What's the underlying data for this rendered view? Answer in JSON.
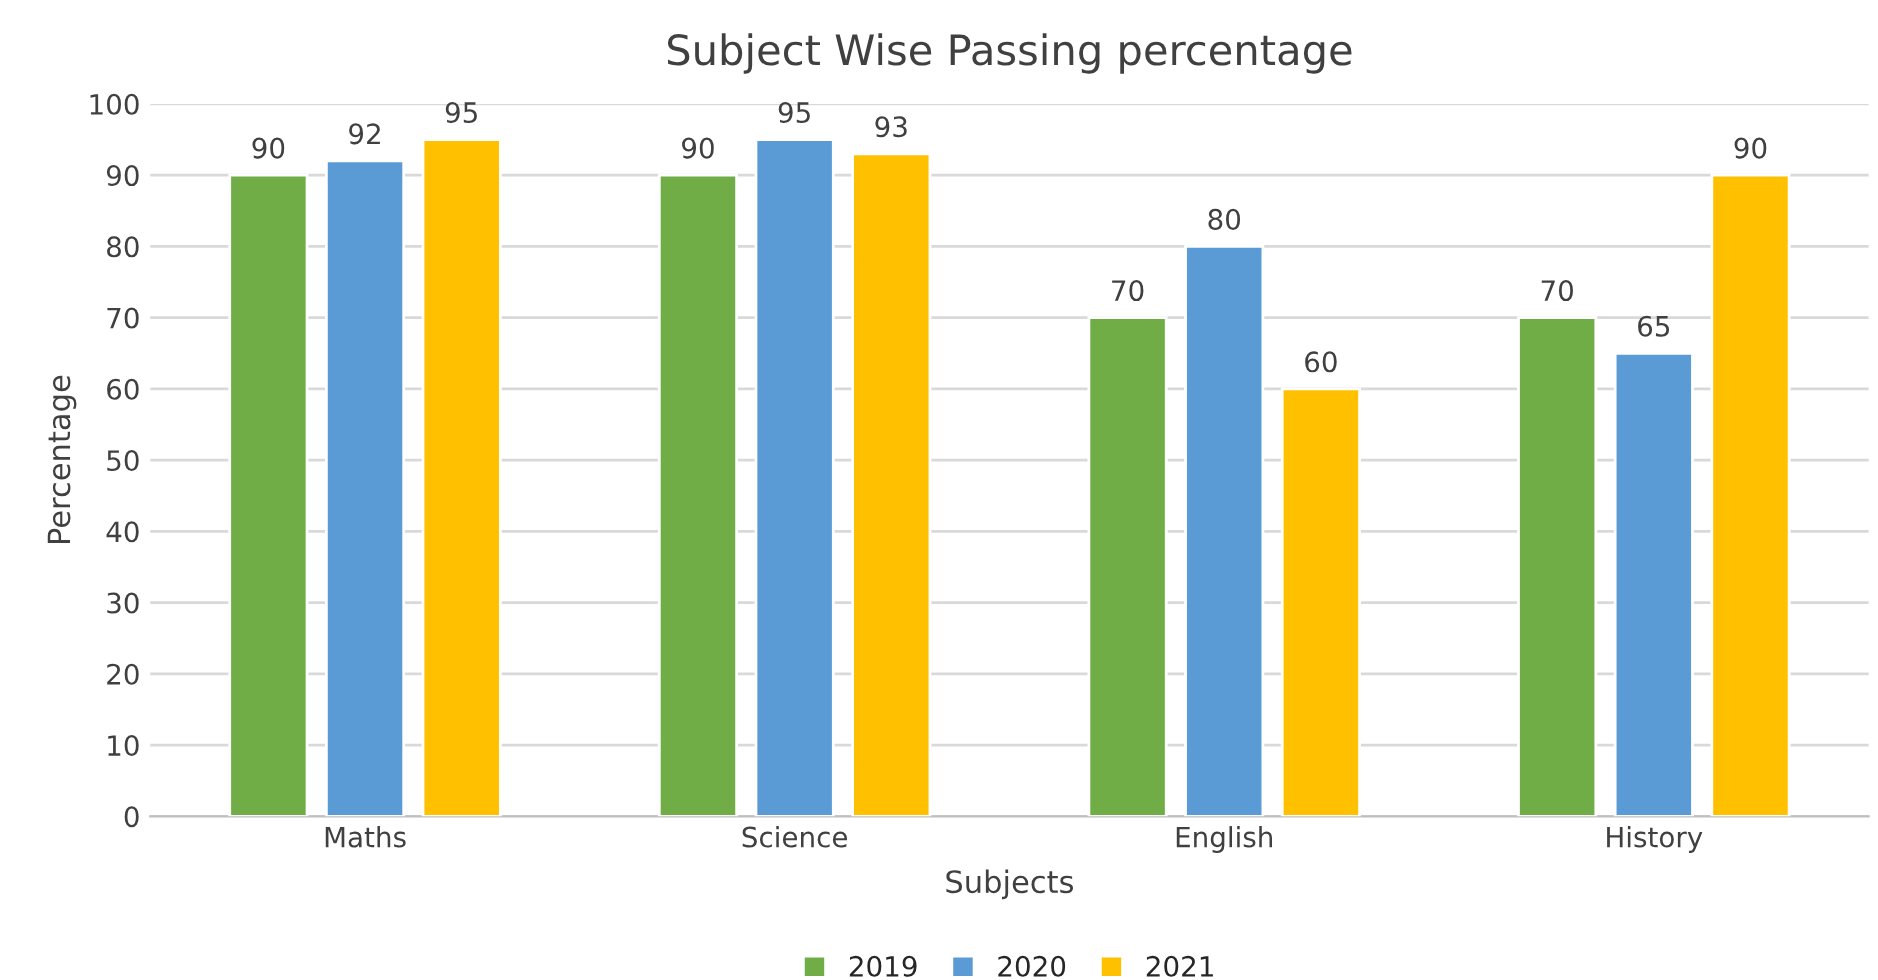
{
  "chart_data": {
    "type": "bar",
    "title": "Subject Wise Passing percentage",
    "xlabel": "Subjects",
    "ylabel": "Percentage",
    "categories": [
      "Maths",
      "Science",
      "English",
      "History"
    ],
    "series": [
      {
        "name": "2019",
        "color": "#70ad47",
        "values": [
          90,
          90,
          70,
          70
        ]
      },
      {
        "name": "2020",
        "color": "#5b9bd5",
        "values": [
          92,
          95,
          80,
          65
        ]
      },
      {
        "name": "2021",
        "color": "#ffc000",
        "values": [
          95,
          93,
          60,
          90
        ]
      }
    ],
    "ylim": [
      0,
      100
    ],
    "yticks": [
      0,
      10,
      20,
      30,
      40,
      50,
      60,
      70,
      80,
      90,
      100
    ],
    "grid": "y",
    "legend": "bottom",
    "data_labels": true
  }
}
